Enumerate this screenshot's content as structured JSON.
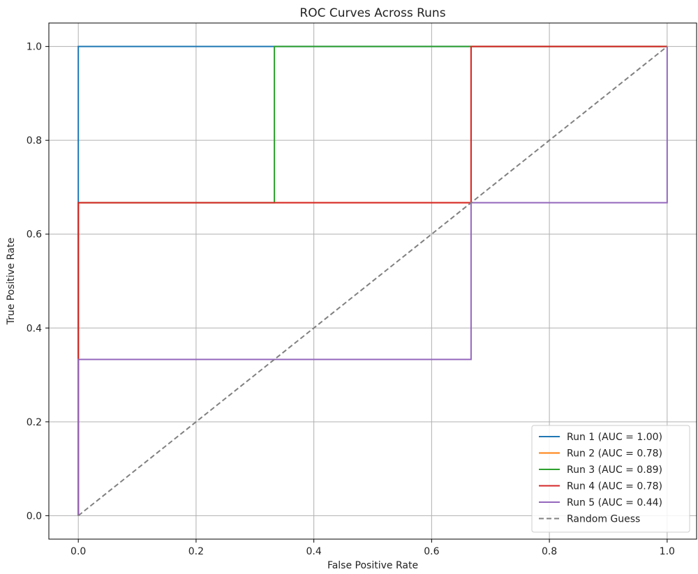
{
  "chart_data": {
    "type": "line",
    "title": "ROC Curves Across Runs",
    "xlabel": "False Positive Rate",
    "ylabel": "True Positive Rate",
    "xlim": [
      -0.05,
      1.05
    ],
    "ylim": [
      -0.05,
      1.05
    ],
    "xticks": [
      "0.0",
      "0.2",
      "0.4",
      "0.6",
      "0.8",
      "1.0"
    ],
    "yticks": [
      "0.0",
      "0.2",
      "0.4",
      "0.6",
      "0.8",
      "1.0"
    ],
    "grid": true,
    "legend_position": "lower-right",
    "series": [
      {
        "name": "Run 1 (AUC = 1.00)",
        "color": "#1f77b4",
        "x": [
          0,
          0,
          0,
          1
        ],
        "y": [
          0,
          0.333,
          1,
          1
        ]
      },
      {
        "name": "Run 2 (AUC = 0.78)",
        "color": "#ff7f0e",
        "x": [
          0,
          0,
          0,
          0.667,
          0.667,
          1
        ],
        "y": [
          0,
          0.333,
          0.667,
          0.667,
          1,
          1
        ]
      },
      {
        "name": "Run 3 (AUC = 0.89)",
        "color": "#2ca02c",
        "x": [
          0,
          0,
          0,
          0.333,
          0.333,
          1
        ],
        "y": [
          0,
          0.333,
          0.667,
          0.667,
          1,
          1
        ]
      },
      {
        "name": "Run 4 (AUC = 0.78)",
        "color": "#d62728",
        "x": [
          0,
          0,
          0,
          0.667,
          0.667,
          1
        ],
        "y": [
          0,
          0.333,
          0.667,
          0.667,
          1,
          1
        ]
      },
      {
        "name": "Run 5 (AUC = 0.44)",
        "color": "#9467bd",
        "x": [
          0,
          0,
          0.667,
          0.667,
          1,
          1
        ],
        "y": [
          0,
          0.333,
          0.333,
          0.667,
          0.667,
          1
        ]
      },
      {
        "name": "Random Guess",
        "color": "#808080",
        "dashed": true,
        "x": [
          0,
          1
        ],
        "y": [
          0,
          1
        ]
      }
    ]
  }
}
